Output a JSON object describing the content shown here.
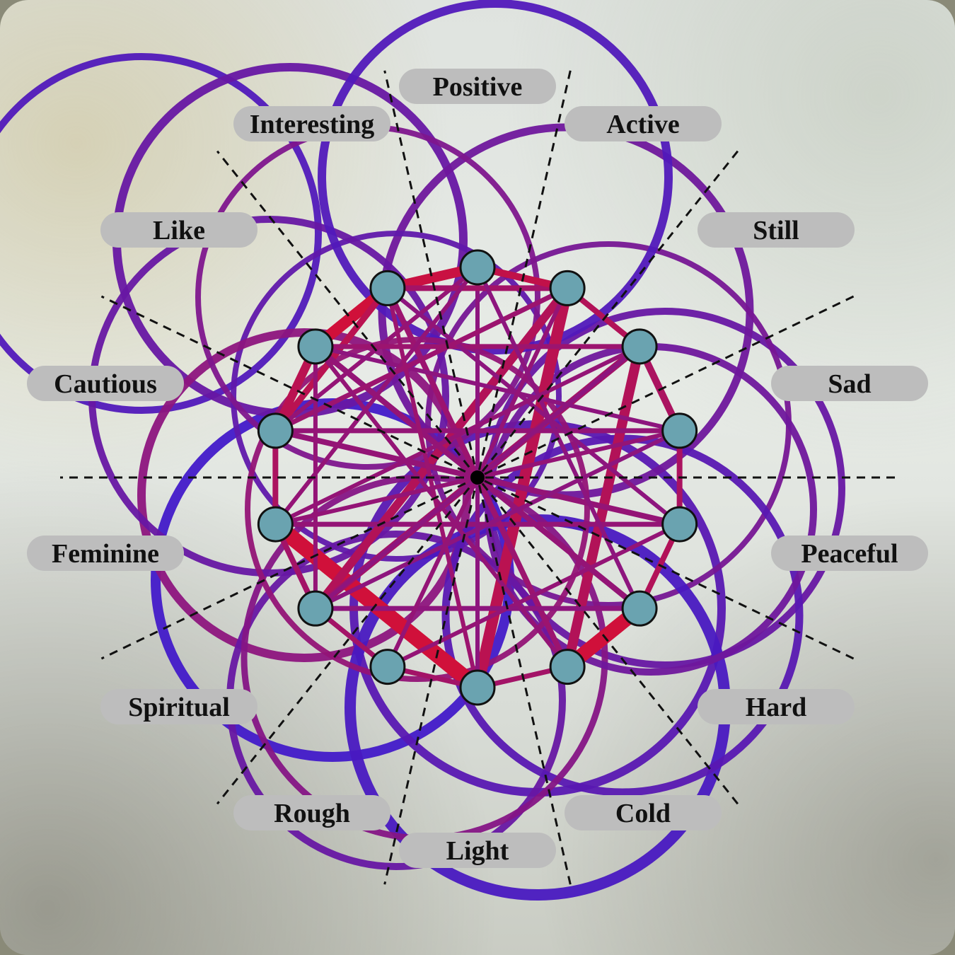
{
  "diagram": {
    "labels": [
      "Positive",
      "Active",
      "Still",
      "Sad",
      "Peaceful",
      "Hard",
      "Cold",
      "Light",
      "Rough",
      "Spiritual",
      "Feminine",
      "Cautious",
      "Like",
      "Interesting"
    ],
    "colors": {
      "node_fill": "#6aa3b0",
      "node_stroke": "#111111",
      "edge_strong": "#d0103a",
      "edge_weak": "#3a1ad0",
      "pill_fill": "#bdbdbd",
      "axis_line": "#111111"
    }
  }
}
